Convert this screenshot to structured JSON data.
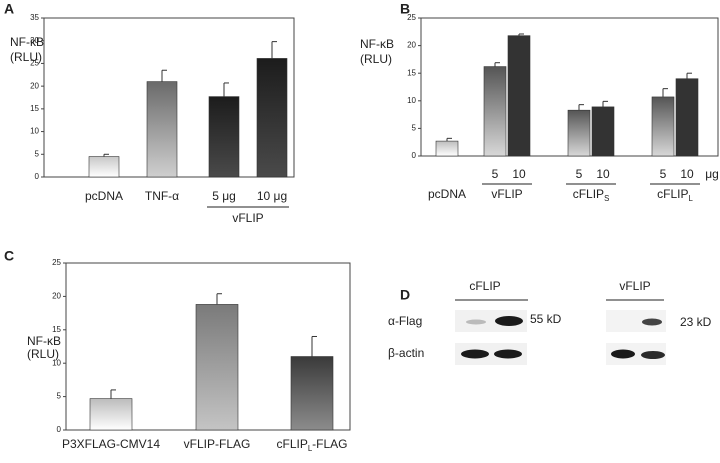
{
  "chart_data": [
    {
      "type": "bar",
      "panel": "A",
      "ylabel": [
        "NF-κB",
        "(RLU)"
      ],
      "ylim": [
        0,
        35
      ],
      "yticks": [
        0,
        5,
        10,
        15,
        20,
        25,
        30,
        35
      ],
      "groups": [
        {
          "label": "pcDNA",
          "values": [
            4.5
          ],
          "errors": [
            0.5
          ],
          "colors": [
            [
              "#c8c8c8",
              "#ffffff"
            ]
          ]
        },
        {
          "label": "TNF-α",
          "values": [
            21
          ],
          "errors": [
            2.5
          ],
          "colors": [
            [
              "#6a6a6a",
              "#cfcfcf"
            ]
          ]
        },
        {
          "label": "vFLIP",
          "doses": [
            "5 μg",
            "10 μg"
          ],
          "values": [
            17.7,
            26.1
          ],
          "errors": [
            3,
            3.7
          ],
          "colors": [
            [
              "#1c1c1c",
              "#4a4a4a"
            ],
            [
              "#1c1c1c",
              "#4a4a4a"
            ]
          ]
        }
      ]
    },
    {
      "type": "bar",
      "panel": "B",
      "ylabel": [
        "NF-κB",
        "(RLU)"
      ],
      "unit": "μg",
      "ylim": [
        0,
        25
      ],
      "yticks": [
        0,
        5,
        10,
        15,
        20,
        25
      ],
      "groups": [
        {
          "label": "pcDNA",
          "values": [
            2.7
          ],
          "errors": [
            0.5
          ],
          "colors": [
            [
              "#bdbdbd",
              "#ffffff"
            ]
          ]
        },
        {
          "label": "vFLIP",
          "doses": [
            "5",
            "10"
          ],
          "values": [
            16.2,
            21.8
          ],
          "errors": [
            0.7,
            0.3
          ],
          "colors": [
            [
              "#555555",
              "#d8d8d8"
            ],
            [
              "#333333",
              "#333333"
            ]
          ]
        },
        {
          "label": {
            "text": "cFLIP",
            "sub": "S"
          },
          "doses": [
            "5",
            "10"
          ],
          "values": [
            8.3,
            8.9
          ],
          "errors": [
            1,
            1
          ],
          "colors": [
            [
              "#555555",
              "#d8d8d8"
            ],
            [
              "#333333",
              "#333333"
            ]
          ]
        },
        {
          "label": {
            "text": "cFLIP",
            "sub": "L"
          },
          "doses": [
            "5",
            "10"
          ],
          "values": [
            10.7,
            14
          ],
          "errors": [
            1.5,
            1
          ],
          "colors": [
            [
              "#555555",
              "#d8d8d8"
            ],
            [
              "#333333",
              "#333333"
            ]
          ]
        }
      ]
    },
    {
      "type": "bar",
      "panel": "C",
      "ylabel": [
        "NF-κB",
        "(RLU)"
      ],
      "ylim": [
        0,
        25
      ],
      "yticks": [
        0,
        5,
        10,
        15,
        20,
        25
      ],
      "groups": [
        {
          "label": "P3XFLAG-CMV14",
          "values": [
            4.7
          ],
          "errors": [
            1.3
          ],
          "colors": [
            [
              "#bcbcbc",
              "#ffffff"
            ]
          ]
        },
        {
          "label": "vFLIP-FLAG",
          "values": [
            18.8
          ],
          "errors": [
            1.6
          ],
          "colors": [
            [
              "#7a7a7a",
              "#c4c4c4"
            ]
          ]
        },
        {
          "label": {
            "text": "cFLIP",
            "sub": "L",
            "suffix": "-FLAG"
          },
          "values": [
            11
          ],
          "errors": [
            3
          ],
          "colors": [
            [
              "#3a3a3a",
              "#8c8c8c"
            ]
          ]
        }
      ]
    }
  ],
  "blot": {
    "panel": "D",
    "lanes": [
      "cFLIP",
      "vFLIP"
    ],
    "rows": [
      "α-Flag",
      "β-actin"
    ],
    "sizes": [
      "55 kD",
      "23 kD"
    ]
  }
}
